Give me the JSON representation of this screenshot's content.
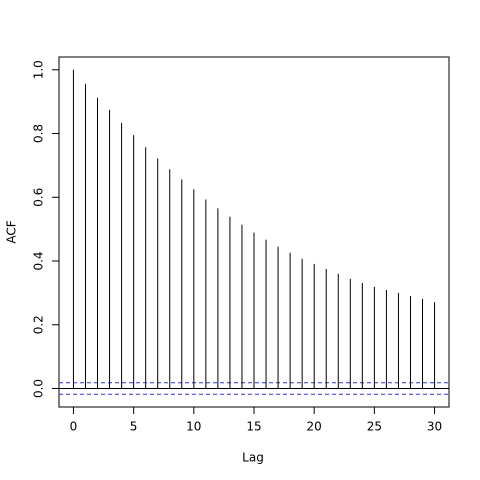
{
  "chart_data": {
    "type": "acf",
    "x_label": "Lag",
    "y_label": "ACF",
    "x": [
      0,
      1,
      2,
      3,
      4,
      5,
      6,
      7,
      8,
      9,
      10,
      11,
      12,
      13,
      14,
      15,
      16,
      17,
      18,
      19,
      20,
      21,
      22,
      23,
      24,
      25,
      26,
      27,
      28,
      29,
      30
    ],
    "values": [
      1.0,
      0.956,
      0.912,
      0.874,
      0.833,
      0.795,
      0.757,
      0.722,
      0.688,
      0.656,
      0.625,
      0.593,
      0.565,
      0.539,
      0.514,
      0.489,
      0.467,
      0.445,
      0.426,
      0.407,
      0.391,
      0.375,
      0.36,
      0.344,
      0.331,
      0.319,
      0.309,
      0.3,
      0.29,
      0.281,
      0.271
    ],
    "color": "#000000",
    "conf_bounds": [
      -0.018,
      0.018
    ],
    "conf_color": "#3333cc",
    "xlim": [
      -1.2,
      31.2
    ],
    "xticks": [
      0,
      5,
      10,
      15,
      20,
      25,
      30
    ],
    "ylim": [
      -0.058,
      1.04
    ],
    "yticks": [
      {
        "value": 0,
        "label": "0.0"
      },
      0.2,
      0.4,
      0.6,
      0.8,
      {
        "value": 1,
        "label": "1.0"
      }
    ]
  }
}
